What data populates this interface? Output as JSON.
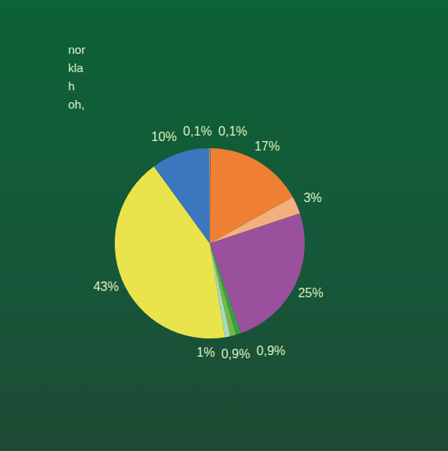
{
  "chart_data": {
    "type": "pie",
    "values": [
      0.1,
      17,
      3,
      25,
      0.9,
      1,
      0.9,
      43,
      10,
      0.1
    ],
    "value_labels": [
      "0,1%",
      "17%",
      "3%",
      "25%",
      "0,9%",
      "1%",
      "0,9%",
      "43%",
      "10%",
      "0,1%"
    ],
    "colors": [
      "#7a3a1e",
      "#ee7f33",
      "#f3b07e",
      "#9a509c",
      "#3a9e48",
      "#73b943",
      "#a9d8c4",
      "#e9e44b",
      "#3b76bf",
      "#8fd2d6"
    ],
    "data_labels": true,
    "annotations": [
      "nor",
      "kla",
      "h",
      "oh,"
    ]
  }
}
